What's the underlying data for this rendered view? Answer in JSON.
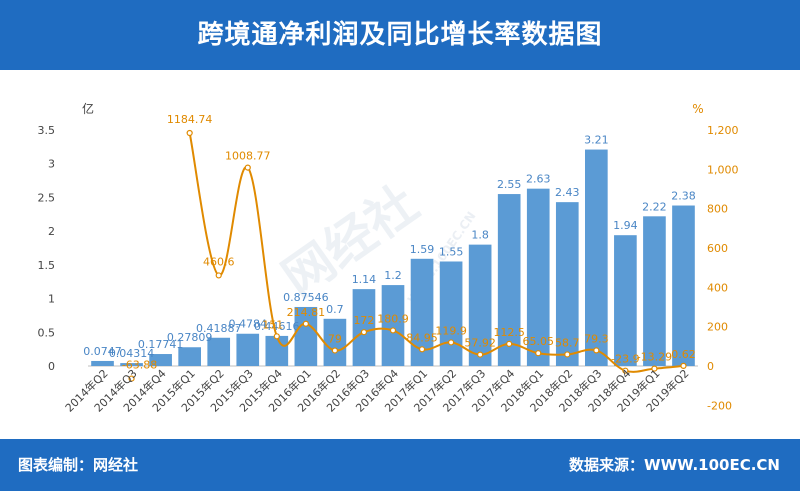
{
  "header": {
    "title": "跨境通净利润及同比增长率数据图"
  },
  "footer": {
    "left": "图表编制：网经社",
    "right": "数据来源：WWW.100EC.CN"
  },
  "watermark": {
    "text": "网经社",
    "url": "WWW.100EC.CN"
  },
  "colors": {
    "bar": "#5b9bd5",
    "line": "#e08a00",
    "header": "#1f6cc1",
    "bar_label": "#4a86c5"
  },
  "chart_data": {
    "type": "bar",
    "categories": [
      "2014年Q2",
      "2014年Q3",
      "2014年Q4",
      "2015年Q1",
      "2015年Q2",
      "2015年Q3",
      "2015年Q4",
      "2016年Q1",
      "2016年Q2",
      "2016年Q3",
      "2016年Q4",
      "2017年Q1",
      "2017年Q2",
      "2017年Q3",
      "2017年Q4",
      "2018年Q1",
      "2018年Q2",
      "2018年Q3",
      "2018年Q4",
      "2019年Q1",
      "2019年Q2"
    ],
    "series": [
      {
        "type": "bar",
        "axis": "left",
        "values": [
          0.0747,
          0.04314,
          0.17741,
          0.27809,
          0.41887,
          0.4784,
          0.44616,
          0.87546,
          0.7,
          1.14,
          1.2,
          1.59,
          1.55,
          1.8,
          2.55,
          2.63,
          2.43,
          3.21,
          1.94,
          2.22,
          2.38
        ],
        "labels": [
          "0.0747",
          "0.04314",
          "0.17741",
          "0.27809",
          "0.41887",
          "0.4784",
          "0.44616",
          "0.87546",
          "0.7",
          "1.14",
          "1.2",
          "1.59",
          "1.55",
          "1.8",
          "2.55",
          "2.63",
          "2.43",
          "3.21",
          "1.94",
          "2.22",
          "2.38"
        ]
      },
      {
        "type": "line",
        "axis": "right",
        "values": [
          null,
          -63.88,
          null,
          1184.74,
          460.6,
          1008.77,
          151,
          214.81,
          79,
          172,
          180.9,
          84.95,
          119.9,
          57.92,
          112.5,
          65.05,
          58.7,
          79.3,
          -23.9,
          -13.29,
          0.62
        ],
        "labels": [
          "",
          "-63.88",
          "",
          "1184.74",
          "460.6",
          "1008.77",
          "151",
          "214.81",
          "79",
          "172",
          "180.9",
          "84.95",
          "119.9",
          "57.92",
          "112.5",
          "65.05",
          "58.7",
          "79.3",
          "-23.9",
          "-13.29",
          "0.62"
        ]
      }
    ],
    "y_left": {
      "unit": "亿",
      "min": 0,
      "max": 3.5,
      "ticks": [
        "0",
        "0.5",
        "1",
        "1.5",
        "2",
        "2.5",
        "3",
        "3.5"
      ],
      "tick_values": [
        0,
        0.5,
        1,
        1.5,
        2,
        2.5,
        3,
        3.5
      ]
    },
    "y_right": {
      "unit": "%",
      "min": -200,
      "max": 1200,
      "ticks": [
        "-200",
        "0",
        "200",
        "400",
        "600",
        "800",
        "1,000",
        "1,200"
      ],
      "tick_values": [
        -200,
        0,
        200,
        400,
        600,
        800,
        1000,
        1200
      ]
    },
    "grid": false,
    "legend": "none"
  }
}
